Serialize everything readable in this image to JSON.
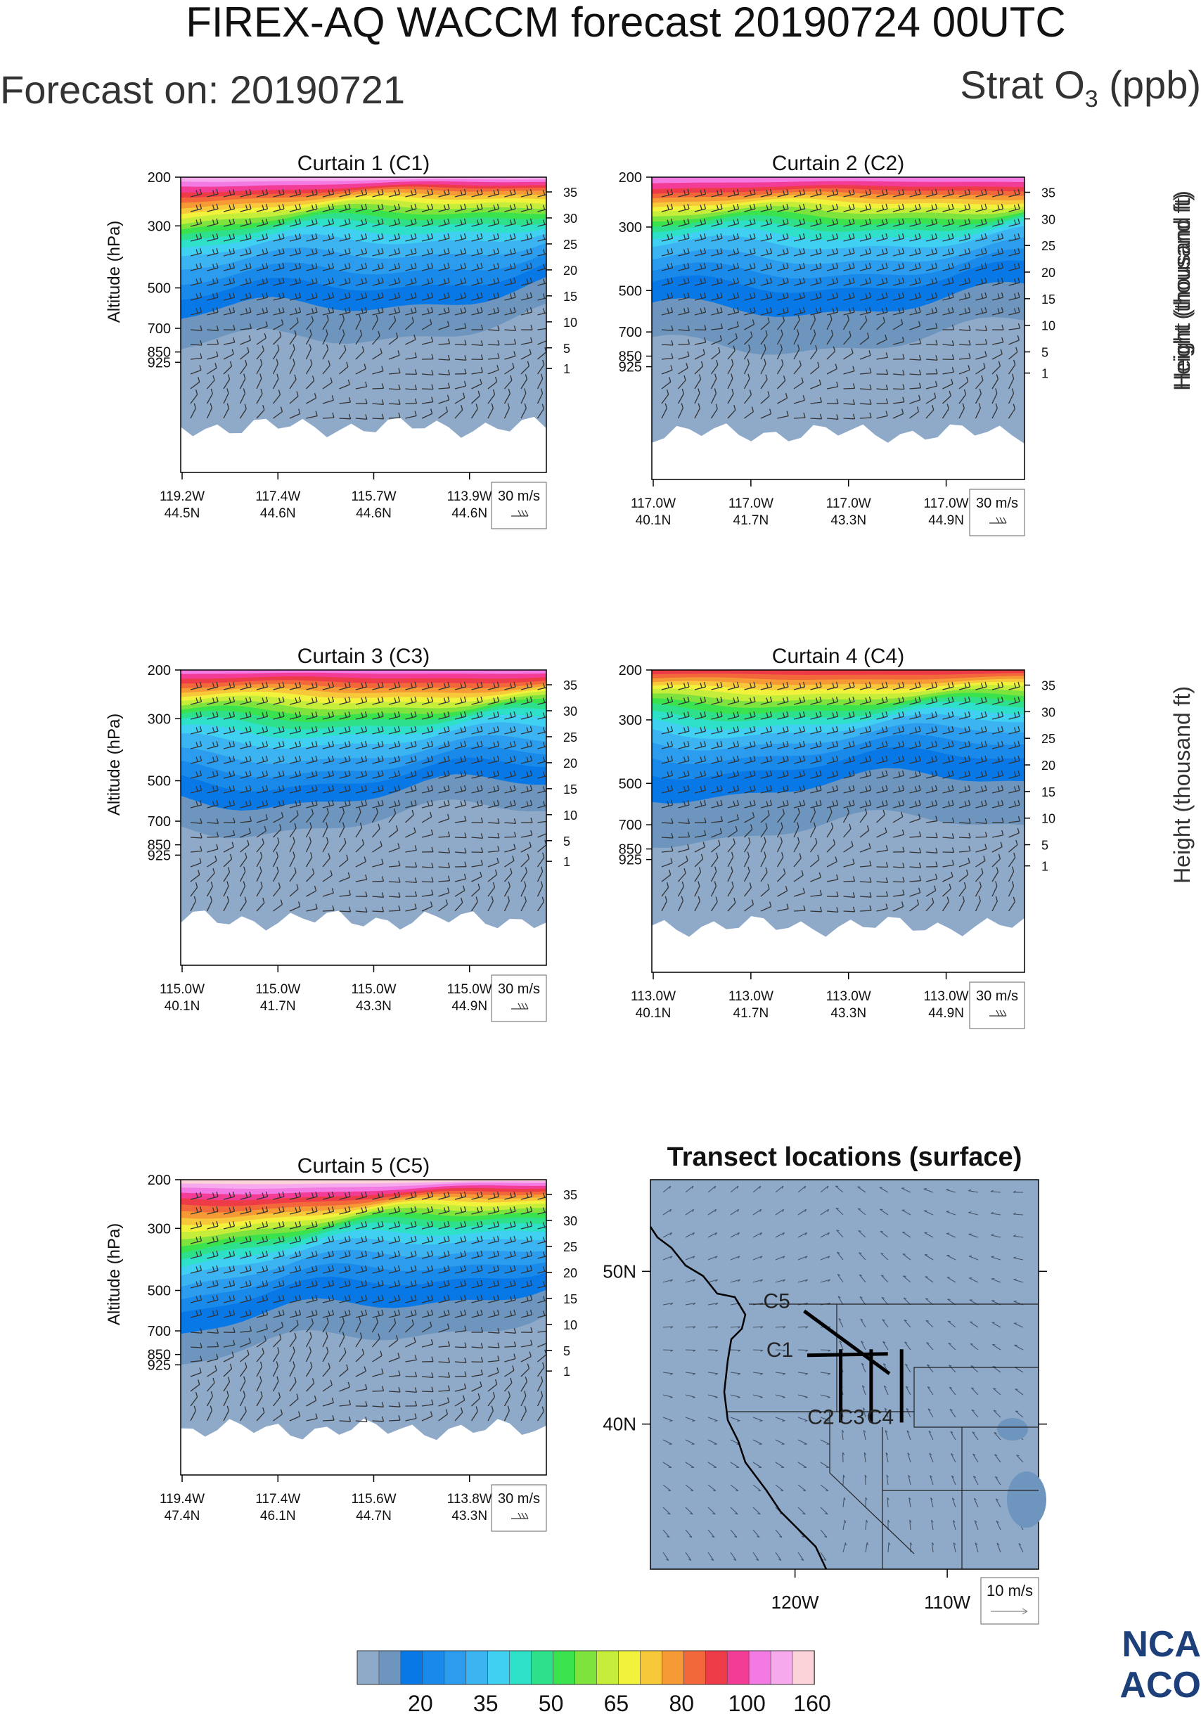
{
  "header": {
    "title": "FIREX-AQ WACCM forecast 20190724 00UTC",
    "forecast_on": "Forecast on: 20190721",
    "variable_main": "Strat O",
    "variable_sub": "3",
    "variable_unit": " (ppb)"
  },
  "colors": {
    "bands": [
      "#8fa9c9",
      "#6d95be",
      "#0878e6",
      "#1a8aea",
      "#2b9cee",
      "#3cb4f2",
      "#3fd0f2",
      "#2ee0c8",
      "#2fe08a",
      "#3ae24e",
      "#7ee33c",
      "#c6ed3a",
      "#f2f23c",
      "#f6c83a",
      "#f59a35",
      "#f2683a",
      "#ee3b48",
      "#f23c96",
      "#f27ae2",
      "#f7a9ee",
      "#fbd3d8"
    ]
  },
  "chart_data": [
    {
      "type": "heatmap",
      "title": "Curtain 1 (C1)",
      "ylabel": "Altitude (hPa)",
      "y_ticks": [
        "200",
        "300",
        "500",
        "700",
        "850",
        "925"
      ],
      "y_right_label": "Height (thousand ft)",
      "y_right_ticks": [
        "35",
        "30",
        "25",
        "20",
        "15",
        "10",
        "5",
        "1"
      ],
      "x_ticks": [
        [
          "119.2W",
          "44.5N"
        ],
        [
          "117.4W",
          "44.6N"
        ],
        [
          "115.7W",
          "44.6N"
        ],
        [
          "113.9W",
          "44.6N"
        ]
      ],
      "wind_key": "30 m/s"
    },
    {
      "type": "heatmap",
      "title": "Curtain 2 (C2)",
      "y_ticks": [
        "200",
        "300",
        "500",
        "700",
        "850",
        "925"
      ],
      "y_right_label": "Height (thousand ft)",
      "y_right_ticks": [
        "35",
        "30",
        "25",
        "20",
        "15",
        "10",
        "5",
        "1"
      ],
      "x_ticks": [
        [
          "117.0W",
          "40.1N"
        ],
        [
          "117.0W",
          "41.7N"
        ],
        [
          "117.0W",
          "43.3N"
        ],
        [
          "117.0W",
          "44.9N"
        ]
      ],
      "wind_key": "30 m/s"
    },
    {
      "type": "heatmap",
      "title": "Curtain 3 (C3)",
      "ylabel": "Altitude (hPa)",
      "y_ticks": [
        "200",
        "300",
        "500",
        "700",
        "850",
        "925"
      ],
      "y_right_ticks": [
        "35",
        "30",
        "25",
        "20",
        "15",
        "10",
        "5",
        "1"
      ],
      "x_ticks": [
        [
          "115.0W",
          "40.1N"
        ],
        [
          "115.0W",
          "41.7N"
        ],
        [
          "115.0W",
          "43.3N"
        ],
        [
          "115.0W",
          "44.9N"
        ]
      ],
      "wind_key": "30 m/s"
    },
    {
      "type": "heatmap",
      "title": "Curtain 4 (C4)",
      "y_ticks": [
        "200",
        "300",
        "500",
        "700",
        "850",
        "925"
      ],
      "y_right_label": "Height (thousand ft)",
      "y_right_ticks": [
        "35",
        "30",
        "25",
        "20",
        "15",
        "10",
        "5",
        "1"
      ],
      "x_ticks": [
        [
          "113.0W",
          "40.1N"
        ],
        [
          "113.0W",
          "41.7N"
        ],
        [
          "113.0W",
          "43.3N"
        ],
        [
          "113.0W",
          "44.9N"
        ]
      ],
      "wind_key": "30 m/s"
    },
    {
      "type": "heatmap",
      "title": "Curtain 5 (C5)",
      "ylabel": "Altitude (hPa)",
      "y_ticks": [
        "200",
        "300",
        "500",
        "700",
        "850",
        "925"
      ],
      "y_right_ticks": [
        "35",
        "30",
        "25",
        "20",
        "15",
        "10",
        "5",
        "1"
      ],
      "x_ticks": [
        [
          "119.4W",
          "47.4N"
        ],
        [
          "117.4W",
          "46.1N"
        ],
        [
          "115.6W",
          "44.7N"
        ],
        [
          "113.8W",
          "43.3N"
        ]
      ],
      "wind_key": "30 m/s"
    },
    {
      "type": "map",
      "title": "Transect locations (surface)",
      "lat_ticks": [
        "50N",
        "40N"
      ],
      "lon_ticks": [
        "120W",
        "110W"
      ],
      "transects": [
        {
          "label": "C5",
          "lon": [
            -119.4,
            -113.8
          ],
          "lat": [
            47.4,
            43.3
          ]
        },
        {
          "label": "C1",
          "lon": [
            -119.2,
            -113.9
          ],
          "lat": [
            44.5,
            44.6
          ]
        },
        {
          "label": "C2",
          "lon": [
            -117.0,
            -117.0
          ],
          "lat": [
            40.1,
            44.9
          ]
        },
        {
          "label": "C3",
          "lon": [
            -115.0,
            -115.0
          ],
          "lat": [
            40.1,
            44.9
          ]
        },
        {
          "label": "C4",
          "lon": [
            -113.0,
            -113.0
          ],
          "lat": [
            40.1,
            44.9
          ]
        }
      ],
      "wind_key": "10 m/s"
    }
  ],
  "colorbar": {
    "labels": [
      "20",
      "35",
      "50",
      "65",
      "80",
      "100",
      "160"
    ]
  },
  "logo": {
    "line1": "NCA",
    "line2": "ACO"
  }
}
